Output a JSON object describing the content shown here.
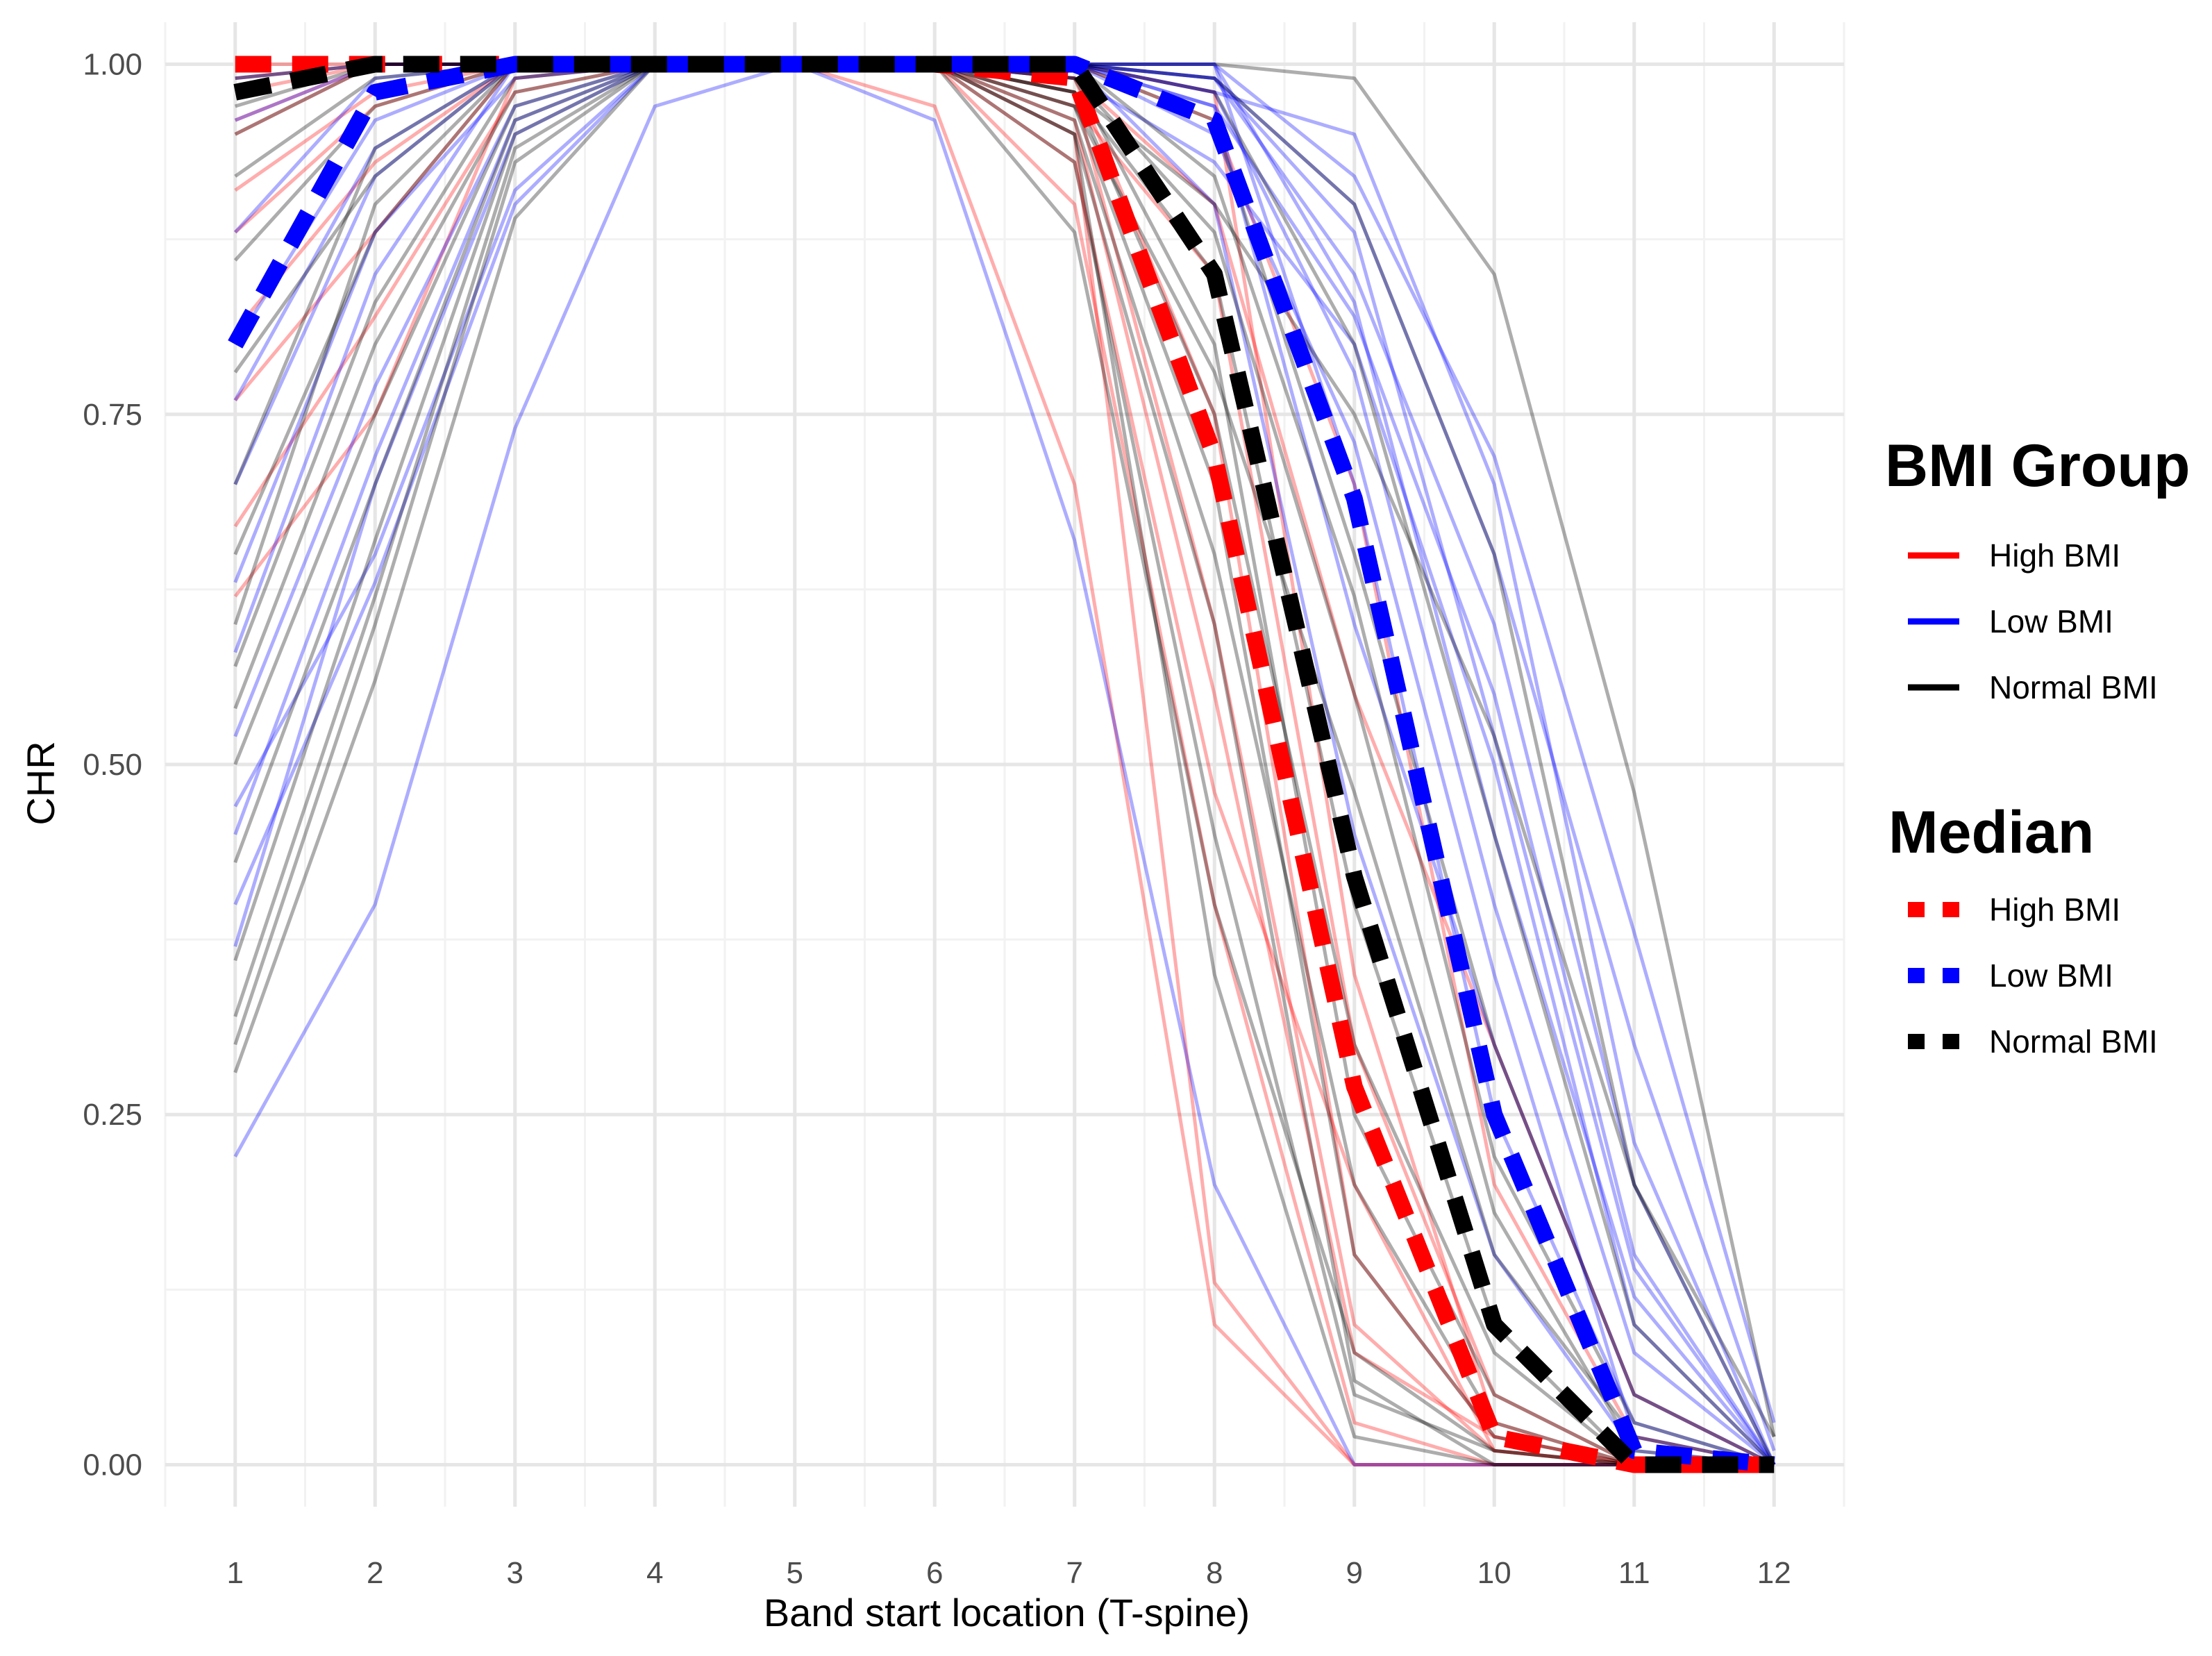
{
  "chart_data": {
    "type": "line",
    "title": "",
    "xlabel": "Band start location (T-spine)",
    "ylabel": "CHR",
    "x": [
      1,
      2,
      3,
      4,
      5,
      6,
      7,
      8,
      9,
      10,
      11,
      12
    ],
    "x_tick_labels": [
      "1",
      "2",
      "3",
      "4",
      "5",
      "6",
      "7",
      "8",
      "9",
      "10",
      "11",
      "12"
    ],
    "y_tick_labels": [
      "0.00",
      "0.25",
      "0.50",
      "0.75",
      "1.00"
    ],
    "xlim": [
      0.5,
      12.5
    ],
    "ylim": [
      -0.03,
      1.03
    ],
    "y_major_ticks": [
      0,
      0.25,
      0.5,
      0.75,
      1.0
    ],
    "grid": true,
    "colors": {
      "High BMI": "#ff0000",
      "Low BMI": "#0000ff",
      "Normal BMI": "#000000"
    },
    "individual_series": [
      {
        "group": "High BMI",
        "values": [
          0.76,
          0.88,
          1,
          1,
          1,
          1,
          0.95,
          0.13,
          0,
          0,
          0,
          0
        ]
      },
      {
        "group": "High BMI",
        "values": [
          0.91,
          0.98,
          1,
          1,
          1,
          1,
          0.9,
          0.4,
          0.03,
          0,
          0,
          0
        ]
      },
      {
        "group": "High BMI",
        "values": [
          0.98,
          1,
          1,
          1,
          1,
          0.97,
          0.7,
          0.1,
          0,
          0,
          0,
          0
        ]
      },
      {
        "group": "High BMI",
        "values": [
          0.67,
          0.82,
          0.98,
          1,
          1,
          1,
          0.98,
          0.6,
          0.1,
          0.01,
          0,
          0
        ]
      },
      {
        "group": "High BMI",
        "values": [
          0.95,
          1,
          1,
          1,
          1,
          1,
          0.97,
          0.85,
          0.3,
          0.05,
          0,
          0
        ]
      },
      {
        "group": "High BMI",
        "values": [
          1,
          1,
          1,
          1,
          1,
          1,
          1,
          0.96,
          0.7,
          0.2,
          0.02,
          0
        ]
      },
      {
        "group": "High BMI",
        "values": [
          0.88,
          0.97,
          1,
          1,
          1,
          1,
          0.99,
          0.75,
          0.15,
          0.02,
          0,
          0
        ]
      },
      {
        "group": "High BMI",
        "values": [
          0.99,
          1,
          1,
          1,
          1,
          1,
          0.96,
          0.55,
          0.08,
          0.02,
          0,
          0
        ]
      },
      {
        "group": "High BMI",
        "values": [
          0.81,
          0.93,
          1,
          1,
          1,
          1,
          0.99,
          0.9,
          0.55,
          0.3,
          0.05,
          0
        ]
      },
      {
        "group": "High BMI",
        "values": [
          0.96,
          1,
          1,
          1,
          1,
          1,
          1,
          0.98,
          0.35,
          0.03,
          0,
          0
        ]
      },
      {
        "group": "High BMI",
        "values": [
          0.62,
          0.75,
          0.99,
          1,
          1,
          1,
          0.93,
          0.48,
          0.2,
          0.01,
          0,
          0
        ]
      },
      {
        "group": "Low BMI",
        "values": [
          0.22,
          0.4,
          0.74,
          0.97,
          1,
          0.96,
          0.66,
          0.2,
          0,
          0,
          0,
          0
        ]
      },
      {
        "group": "Low BMI",
        "values": [
          0.47,
          0.65,
          0.91,
          1,
          1,
          1,
          1,
          0.98,
          0.95,
          0.7,
          0.23,
          0
        ]
      },
      {
        "group": "Low BMI",
        "values": [
          0.8,
          0.96,
          1,
          1,
          1,
          1,
          1,
          1,
          0.92,
          0.72,
          0.38,
          0.03
        ]
      },
      {
        "group": "Low BMI",
        "values": [
          0.37,
          0.7,
          0.95,
          1,
          1,
          1,
          0.99,
          0.93,
          0.8,
          0.5,
          0.1,
          0
        ]
      },
      {
        "group": "Low BMI",
        "values": [
          0.58,
          0.85,
          1,
          1,
          1,
          1,
          1,
          0.97,
          0.6,
          0.3,
          0.05,
          0
        ]
      },
      {
        "group": "Low BMI",
        "values": [
          0.4,
          0.63,
          0.9,
          1,
          1,
          1,
          1,
          0.99,
          0.88,
          0.52,
          0.14,
          0
        ]
      },
      {
        "group": "Low BMI",
        "values": [
          0.96,
          1,
          1,
          1,
          1,
          1,
          1,
          0.95,
          0.73,
          0.35,
          0.02,
          0
        ]
      },
      {
        "group": "Low BMI",
        "values": [
          0.7,
          0.92,
          1,
          1,
          1,
          1,
          1,
          0.99,
          0.85,
          0.6,
          0.2,
          0
        ]
      },
      {
        "group": "Low BMI",
        "values": [
          0.88,
          0.99,
          1,
          1,
          1,
          1,
          1,
          0.9,
          0.45,
          0.15,
          0.01,
          0
        ]
      },
      {
        "group": "Low BMI",
        "values": [
          0.52,
          0.77,
          0.97,
          1,
          1,
          1,
          1,
          1,
          0.83,
          0.45,
          0.12,
          0
        ]
      },
      {
        "group": "Low BMI",
        "values": [
          0.63,
          0.88,
          0.99,
          1,
          1,
          1,
          1,
          0.98,
          0.78,
          0.4,
          0.08,
          0
        ]
      },
      {
        "group": "Low BMI",
        "values": [
          0.99,
          1,
          1,
          1,
          1,
          1,
          1,
          1,
          0.7,
          0.25,
          0.03,
          0
        ]
      },
      {
        "group": "Low BMI",
        "values": [
          0.45,
          0.72,
          0.96,
          1,
          1,
          1,
          1,
          0.99,
          0.9,
          0.65,
          0.3,
          0.01
        ]
      },
      {
        "group": "Low BMI",
        "values": [
          0.76,
          0.94,
          1,
          1,
          1,
          1,
          1,
          0.97,
          0.82,
          0.55,
          0.15,
          0
        ]
      },
      {
        "group": "Normal BMI",
        "values": [
          0.28,
          0.56,
          0.89,
          1,
          1,
          1,
          0.95,
          0.35,
          0.02,
          0,
          0,
          0
        ]
      },
      {
        "group": "Normal BMI",
        "values": [
          0.3,
          0.6,
          0.93,
          1,
          1,
          1,
          0.98,
          0.9,
          0.75,
          0.52,
          0.2,
          0
        ]
      },
      {
        "group": "Normal BMI",
        "values": [
          0.95,
          1,
          1,
          1,
          1,
          1,
          1,
          1,
          0.99,
          0.85,
          0.48,
          0.02
        ]
      },
      {
        "group": "Normal BMI",
        "values": [
          0.32,
          0.62,
          0.94,
          1,
          1,
          1,
          0.99,
          0.8,
          0.25,
          0.05,
          0,
          0
        ]
      },
      {
        "group": "Normal BMI",
        "values": [
          0.5,
          0.75,
          0.97,
          1,
          1,
          1,
          0.97,
          0.7,
          0.15,
          0.02,
          0,
          0
        ]
      },
      {
        "group": "Normal BMI",
        "values": [
          0.65,
          0.88,
          1,
          1,
          1,
          1,
          0.98,
          0.85,
          0.4,
          0.1,
          0,
          0
        ]
      },
      {
        "group": "Normal BMI",
        "values": [
          0.86,
          0.97,
          1,
          1,
          1,
          1,
          0.95,
          0.6,
          0.06,
          0,
          0,
          0
        ]
      },
      {
        "group": "Normal BMI",
        "values": [
          0.57,
          0.83,
          0.99,
          1,
          1,
          1,
          1,
          0.96,
          0.65,
          0.3,
          0.05,
          0
        ]
      },
      {
        "group": "Normal BMI",
        "values": [
          0.43,
          0.7,
          0.96,
          1,
          1,
          1,
          0.99,
          0.88,
          0.55,
          0.18,
          0.01,
          0
        ]
      },
      {
        "group": "Normal BMI",
        "values": [
          0.78,
          0.92,
          1,
          1,
          1,
          1,
          0.93,
          0.45,
          0.05,
          0.01,
          0,
          0
        ]
      },
      {
        "group": "Normal BMI",
        "values": [
          0.99,
          1,
          1,
          1,
          1,
          1,
          1,
          0.98,
          0.8,
          0.45,
          0.1,
          0
        ]
      },
      {
        "group": "Normal BMI",
        "values": [
          0.36,
          0.66,
          0.95,
          1,
          1,
          1,
          0.98,
          0.75,
          0.3,
          0.08,
          0,
          0
        ]
      },
      {
        "group": "Normal BMI",
        "values": [
          0.6,
          0.9,
          1,
          1,
          1,
          1,
          1,
          0.99,
          0.9,
          0.65,
          0.2,
          0.02
        ]
      },
      {
        "group": "Normal BMI",
        "values": [
          0.92,
          0.99,
          1,
          1,
          1,
          1,
          0.96,
          0.65,
          0.2,
          0.03,
          0,
          0
        ]
      },
      {
        "group": "Normal BMI",
        "values": [
          0.7,
          0.94,
          1,
          1,
          1,
          1,
          0.88,
          0.4,
          0.08,
          0.01,
          0,
          0
        ]
      },
      {
        "group": "Normal BMI",
        "values": [
          0.54,
          0.8,
          0.98,
          1,
          1,
          1,
          1,
          0.92,
          0.62,
          0.22,
          0.03,
          0
        ]
      },
      {
        "group": "Normal BMI",
        "values": [
          0.97,
          1,
          1,
          1,
          1,
          1,
          0.97,
          0.78,
          0.48,
          0.15,
          0.02,
          0
        ]
      }
    ],
    "median_series": [
      {
        "name": "High BMI",
        "values": [
          1.0,
          1.0,
          1.0,
          1.0,
          1.0,
          1.0,
          0.99,
          0.72,
          0.27,
          0.02,
          0,
          0
        ]
      },
      {
        "name": "Low BMI",
        "values": [
          0.8,
          0.98,
          1.0,
          1.0,
          1.0,
          1.0,
          1.0,
          0.96,
          0.69,
          0.25,
          0.01,
          0
        ]
      },
      {
        "name": "Normal BMI",
        "values": [
          0.98,
          1.0,
          1.0,
          1.0,
          1.0,
          1.0,
          1.0,
          0.85,
          0.42,
          0.1,
          0,
          0
        ]
      }
    ],
    "legends": [
      {
        "title": "BMI Group",
        "line_style": "solid",
        "entries": [
          {
            "label": "High BMI",
            "color": "#ff0000"
          },
          {
            "label": "Low BMI",
            "color": "#0000ff"
          },
          {
            "label": "Normal BMI",
            "color": "#000000"
          }
        ]
      },
      {
        "title": "Median",
        "line_style": "dashed",
        "entries": [
          {
            "label": "High BMI",
            "color": "#ff0000"
          },
          {
            "label": "Low BMI",
            "color": "#0000ff"
          },
          {
            "label": "Normal BMI",
            "color": "#000000"
          }
        ]
      }
    ],
    "legend_position": "right"
  }
}
